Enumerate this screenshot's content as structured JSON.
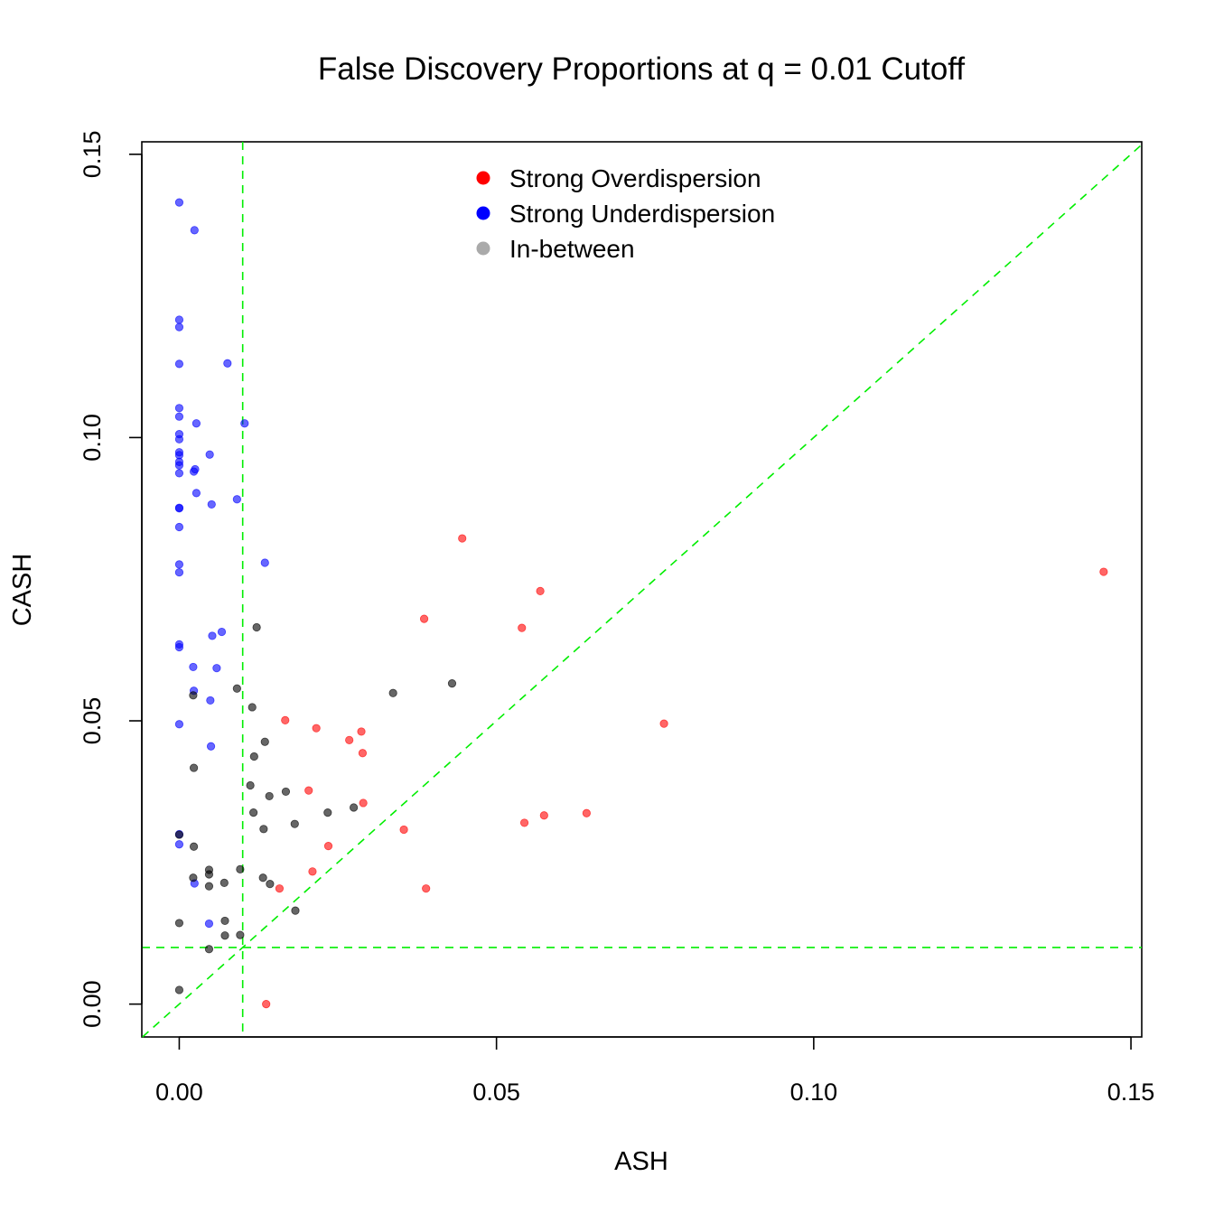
{
  "chart_data": {
    "type": "scatter",
    "title": "False Discovery Proportions at q = 0.01 Cutoff",
    "xlabel": "ASH",
    "ylabel": "CASH",
    "xlim": [
      -0.0059,
      0.1517
    ],
    "ylim": [
      -0.0058,
      0.1522
    ],
    "xticks": [
      0.0,
      0.05,
      0.1,
      0.15
    ],
    "xtick_labels": [
      "0.00",
      "0.05",
      "0.10",
      "0.15"
    ],
    "yticks": [
      0.0,
      0.05,
      0.1,
      0.15
    ],
    "ytick_labels": [
      "0.00",
      "0.05",
      "0.10",
      "0.15"
    ],
    "reference_lines": [
      {
        "kind": "vertical",
        "x": 0.01,
        "color": "#00ee00",
        "style": "dashed"
      },
      {
        "kind": "horizontal",
        "y": 0.01,
        "color": "#00ee00",
        "style": "dashed"
      },
      {
        "kind": "diagonal",
        "slope": 1,
        "intercept": 0,
        "color": "#00ee00",
        "style": "dashed"
      }
    ],
    "legend_position": "top-center",
    "series": [
      {
        "name": "Strong Overdispersion",
        "color": "#ff0000",
        "points": [
          [
            0.0446,
            0.0822
          ],
          [
            0.1457,
            0.0763
          ],
          [
            0.0569,
            0.0729
          ],
          [
            0.0386,
            0.068
          ],
          [
            0.054,
            0.0664
          ],
          [
            0.0764,
            0.0495
          ],
          [
            0.0167,
            0.0501
          ],
          [
            0.0216,
            0.0487
          ],
          [
            0.0287,
            0.0481
          ],
          [
            0.0268,
            0.0466
          ],
          [
            0.0289,
            0.0443
          ],
          [
            0.0204,
            0.0377
          ],
          [
            0.029,
            0.0355
          ],
          [
            0.0642,
            0.0337
          ],
          [
            0.0575,
            0.0333
          ],
          [
            0.0544,
            0.032
          ],
          [
            0.0354,
            0.0308
          ],
          [
            0.0235,
            0.0279
          ],
          [
            0.021,
            0.0234
          ],
          [
            0.0158,
            0.0204
          ],
          [
            0.0389,
            0.0204
          ],
          [
            0.0137,
            0.0
          ]
        ]
      },
      {
        "name": "Strong Underdispersion",
        "color": "#0000ff",
        "points": [
          [
            0.0,
            0.1415
          ],
          [
            0.0024,
            0.1366
          ],
          [
            0.0,
            0.1208
          ],
          [
            0.0,
            0.1195
          ],
          [
            0.0,
            0.113
          ],
          [
            0.0076,
            0.1131
          ],
          [
            0.0,
            0.1052
          ],
          [
            0.0,
            0.1037
          ],
          [
            0.0027,
            0.1025
          ],
          [
            0.0103,
            0.1025
          ],
          [
            0.0,
            0.1006
          ],
          [
            0.0,
            0.0997
          ],
          [
            0.0,
            0.0974
          ],
          [
            0.0,
            0.0969
          ],
          [
            0.0048,
            0.097
          ],
          [
            0.0,
            0.0957
          ],
          [
            0.0,
            0.0951
          ],
          [
            0.0025,
            0.0944
          ],
          [
            0.0023,
            0.094
          ],
          [
            0.0,
            0.0937
          ],
          [
            0.0027,
            0.0902
          ],
          [
            0.0091,
            0.0891
          ],
          [
            0.0051,
            0.0882
          ],
          [
            0.0,
            0.0876
          ],
          [
            0.0,
            0.0875
          ],
          [
            0.0,
            0.0842
          ],
          [
            0.0135,
            0.0779
          ],
          [
            0.0,
            0.0776
          ],
          [
            0.0,
            0.0762
          ],
          [
            0.0067,
            0.0657
          ],
          [
            0.0052,
            0.065
          ],
          [
            0.0,
            0.0635
          ],
          [
            0.0,
            0.063
          ],
          [
            0.0022,
            0.0595
          ],
          [
            0.0059,
            0.0593
          ],
          [
            0.0023,
            0.0553
          ],
          [
            0.0049,
            0.0536
          ],
          [
            0.0,
            0.0494
          ],
          [
            0.005,
            0.0455
          ],
          [
            0.0,
            0.03
          ],
          [
            0.0,
            0.0282
          ],
          [
            0.0024,
            0.0213
          ],
          [
            0.0047,
            0.0142
          ]
        ]
      },
      {
        "name": "In-between",
        "color": "#000000",
        "points": [
          [
            0.0122,
            0.0665
          ],
          [
            0.043,
            0.0566
          ],
          [
            0.0091,
            0.0557
          ],
          [
            0.0337,
            0.0549
          ],
          [
            0.0022,
            0.0545
          ],
          [
            0.0115,
            0.0524
          ],
          [
            0.0135,
            0.0463
          ],
          [
            0.0118,
            0.0437
          ],
          [
            0.0023,
            0.0417
          ],
          [
            0.0112,
            0.0386
          ],
          [
            0.0168,
            0.0375
          ],
          [
            0.0142,
            0.0367
          ],
          [
            0.0275,
            0.0347
          ],
          [
            0.0117,
            0.0338
          ],
          [
            0.0234,
            0.0338
          ],
          [
            0.0182,
            0.0318
          ],
          [
            0.0133,
            0.0309
          ],
          [
            0.0,
            0.0299
          ],
          [
            0.0023,
            0.0278
          ],
          [
            0.0096,
            0.0238
          ],
          [
            0.0047,
            0.0237
          ],
          [
            0.0047,
            0.0229
          ],
          [
            0.0022,
            0.0223
          ],
          [
            0.0132,
            0.0223
          ],
          [
            0.0071,
            0.0214
          ],
          [
            0.0143,
            0.0212
          ],
          [
            0.0047,
            0.0208
          ],
          [
            0.0183,
            0.0165
          ],
          [
            0.0072,
            0.0147
          ],
          [
            0.0,
            0.0143
          ],
          [
            0.0072,
            0.0121
          ],
          [
            0.0096,
            0.0122
          ],
          [
            0.0047,
            0.0097
          ],
          [
            0.0,
            0.0025
          ]
        ]
      }
    ],
    "legend": [
      {
        "label": "Strong Overdispersion",
        "color": "#ff0000"
      },
      {
        "label": "Strong Underdispersion",
        "color": "#0000ff"
      },
      {
        "label": "In-between",
        "color": "#aaaaaa"
      }
    ]
  }
}
